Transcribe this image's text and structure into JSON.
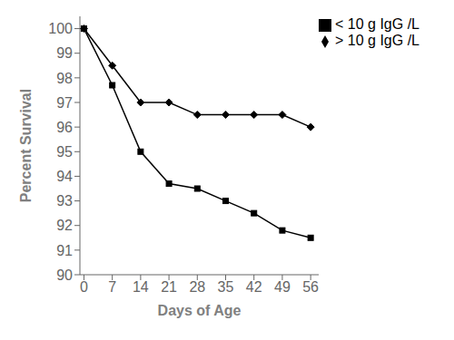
{
  "chart_data": {
    "type": "line",
    "x": [
      0,
      7,
      14,
      21,
      28,
      35,
      42,
      49,
      56
    ],
    "series": [
      {
        "name": "> 10 g IgG /L",
        "color": "#000000",
        "marker": "diamond",
        "values": [
          100,
          98.5,
          97.0,
          97.0,
          96.5,
          96.5,
          96.5,
          96.5,
          96.0
        ]
      },
      {
        "name": "< 10 g IgG /L",
        "color": "#000000",
        "marker": "square",
        "values": [
          100,
          97.7,
          95.0,
          93.7,
          93.5,
          93.0,
          92.5,
          91.8,
          91.5
        ]
      }
    ],
    "xlabel": "Days of Age",
    "ylabel": "Percent Survival",
    "xlim": [
      -1,
      58
    ],
    "ylim": [
      90,
      100.5
    ],
    "xticks": [
      0,
      7,
      14,
      21,
      28,
      35,
      42,
      49,
      56
    ],
    "yticks": [
      90,
      91,
      92,
      93,
      94,
      95,
      96,
      97,
      98,
      99,
      100
    ],
    "grid": false,
    "legend": "upper right"
  }
}
